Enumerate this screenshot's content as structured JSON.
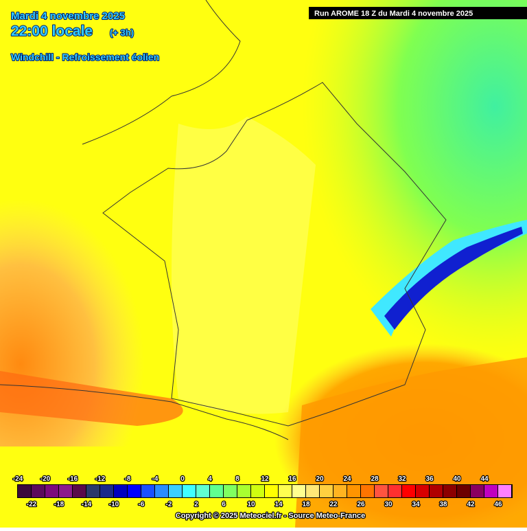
{
  "header": {
    "date": "Mardi 4 novembre 2025",
    "time": "22:00 locale",
    "offset": "(+ 3h)",
    "parameter": "Windchill - Refroissement éolien"
  },
  "run": "Run AROME 18 Z du Mardi 4 novembre 2025",
  "legend": {
    "top_labels": [
      -24,
      -20,
      -16,
      -12,
      -8,
      -4,
      0,
      4,
      8,
      12,
      16,
      20,
      24,
      28,
      32,
      36,
      40,
      44
    ],
    "bottom_labels": [
      -22,
      -18,
      -14,
      -10,
      -6,
      -2,
      2,
      6,
      10,
      14,
      18,
      22,
      26,
      30,
      34,
      38,
      42,
      46
    ],
    "colors": [
      "#3c0a3c",
      "#5c0a5c",
      "#7c0a7c",
      "#8c1a8c",
      "#5a0a4a",
      "#2a3a6a",
      "#1a2a8a",
      "#0000c0",
      "#0000ff",
      "#1a50ff",
      "#2a8cff",
      "#3ccfff",
      "#40ffff",
      "#60ffd0",
      "#60ff90",
      "#80ff60",
      "#a8ff30",
      "#d0ff10",
      "#ffff00",
      "#ffff50",
      "#ffff90",
      "#ffe878",
      "#ffd040",
      "#ffb420",
      "#ff9400",
      "#ff7400",
      "#ff5440",
      "#ff3030",
      "#ff0000",
      "#d80000",
      "#b00000",
      "#8c0000",
      "#6c0000",
      "#8a0060",
      "#c000c0",
      "#ff80ff"
    ]
  },
  "footer": {
    "copyright": "Copyright © 2025 Meteociel.fr - Source Meteo-France"
  }
}
